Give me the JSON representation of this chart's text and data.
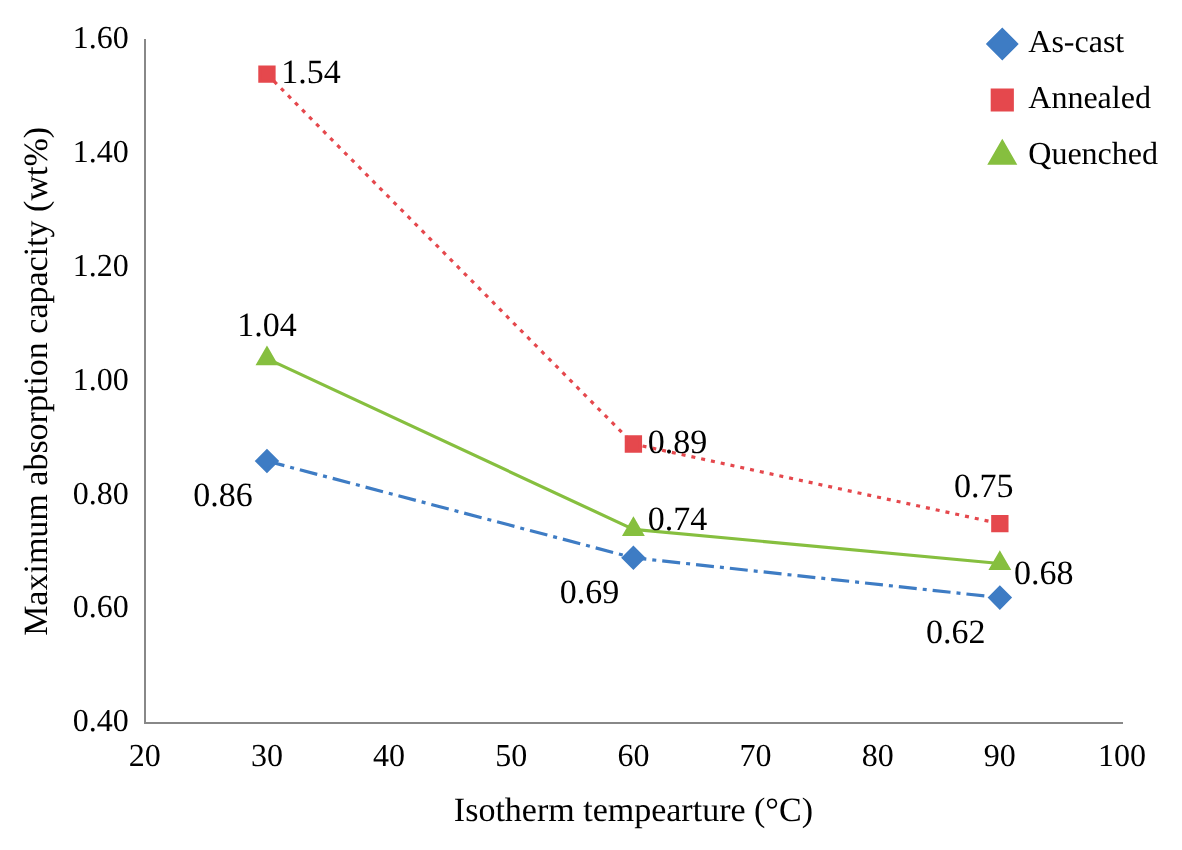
{
  "chart_data": {
    "type": "line",
    "xlabel": "Isotherm tempearture (°C)",
    "ylabel": "Maximum absorption capacity (wt%)",
    "x": [
      30,
      60,
      90
    ],
    "series": [
      {
        "name": "As-cast",
        "color": "#3e7cc4",
        "values": [
          0.86,
          0.69,
          0.62
        ],
        "marker": "diamond",
        "line_style": "dashed"
      },
      {
        "name": "Annealed",
        "color": "#e5484d",
        "values": [
          1.54,
          0.89,
          0.75
        ],
        "marker": "square",
        "line_style": "dotted"
      },
      {
        "name": "Quenched",
        "color": "#86bf3f",
        "values": [
          1.04,
          0.74,
          0.68
        ],
        "marker": "triangle",
        "line_style": "solid"
      }
    ],
    "xlim": [
      20,
      100
    ],
    "xticks": [
      20,
      30,
      40,
      50,
      60,
      70,
      80,
      90,
      100
    ],
    "ylim": [
      0.4,
      1.6
    ],
    "yticks": [
      {
        "value": 0.4,
        "label": "0.40"
      },
      {
        "value": 0.6,
        "label": "0.60"
      },
      {
        "value": 0.8,
        "label": "0.80"
      },
      {
        "value": 1.0,
        "label": "1.00"
      },
      {
        "value": 1.2,
        "label": "1.20"
      },
      {
        "value": 1.4,
        "label": "1.40"
      },
      {
        "value": 1.6,
        "label": "1.60"
      }
    ],
    "grid": false,
    "legend": "top right",
    "data_labels": true
  }
}
